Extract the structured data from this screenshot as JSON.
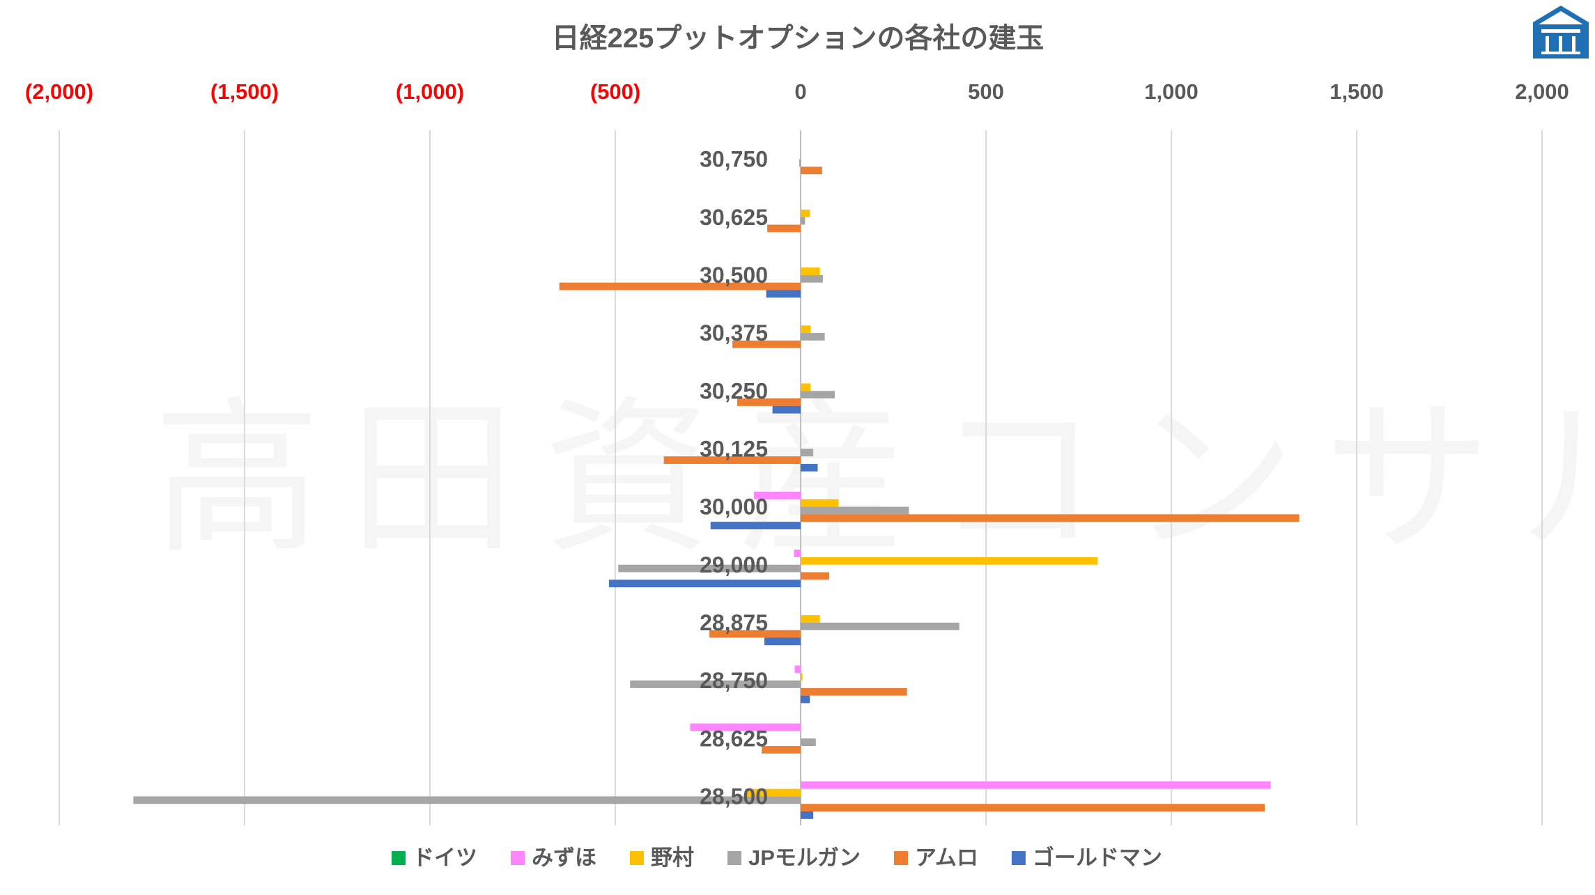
{
  "chart_data": {
    "type": "bar",
    "orientation": "horizontal",
    "title": "日経225プットオプションの各社の建玉",
    "watermark": "高田資産コンサル",
    "xlim": [
      -2000,
      2000
    ],
    "xticks": [
      -2000,
      -1500,
      -1000,
      -500,
      0,
      500,
      1000,
      1500,
      2000
    ],
    "xtick_labels": [
      "(2,000)",
      "(1,500)",
      "(1,000)",
      "(500)",
      "0",
      "500",
      "1,000",
      "1,500",
      "2,000"
    ],
    "negative_label_color": "#FF0000",
    "grid": "vertical",
    "legend_position": "bottom",
    "categories": [
      "30,750",
      "30,625",
      "30,500",
      "30,375",
      "30,250",
      "30,125",
      "30,000",
      "29,000",
      "28,875",
      "28,750",
      "28,625",
      "28,500"
    ],
    "series": [
      {
        "name": "ドイツ",
        "color": "#00B050",
        "values": [
          0,
          0,
          0,
          0,
          0,
          0,
          0,
          0,
          0,
          0,
          0,
          0
        ]
      },
      {
        "name": "みずほ",
        "color": "#FF85FF",
        "values": [
          0,
          0,
          0,
          0,
          0,
          0,
          -126,
          -18,
          0,
          -16,
          -298,
          1268
        ]
      },
      {
        "name": "野村",
        "color": "#FFC000",
        "values": [
          0,
          25,
          52,
          27,
          27,
          0,
          102,
          801,
          52,
          5,
          0,
          -150
        ]
      },
      {
        "name": "JPモルガン",
        "color": "#A5A5A5",
        "values": [
          -4,
          12,
          60,
          65,
          92,
          34,
          292,
          -492,
          428,
          -460,
          41,
          -1800
        ]
      },
      {
        "name": "アムロ",
        "color": "#ED7D31",
        "values": [
          58,
          -90,
          -651,
          -184,
          -171,
          -369,
          1345,
          77,
          -246,
          287,
          -105,
          1252
        ]
      },
      {
        "name": "ゴールドマン",
        "color": "#4472C4",
        "values": [
          0,
          0,
          -93,
          0,
          -76,
          46,
          -243,
          -517,
          -98,
          25,
          0,
          34
        ]
      }
    ]
  }
}
